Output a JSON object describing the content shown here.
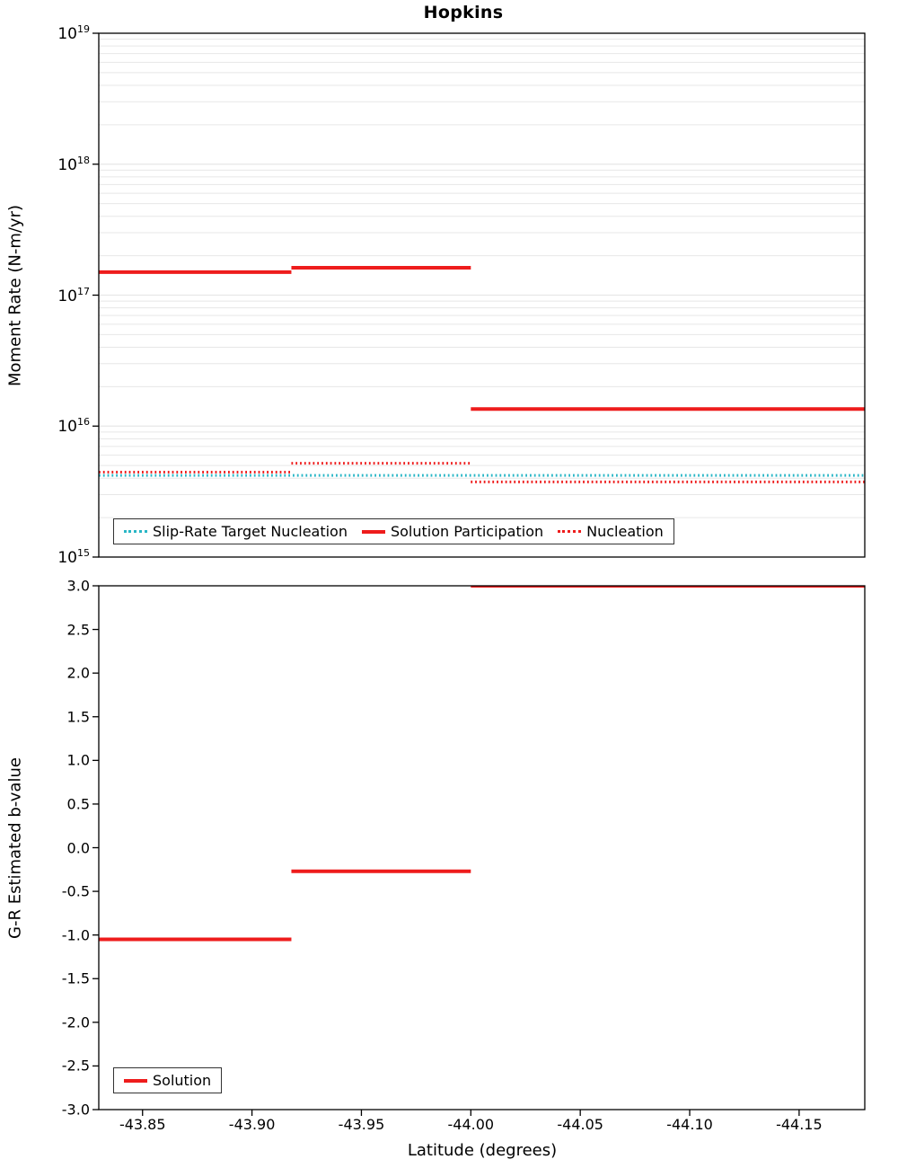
{
  "title": "Hopkins",
  "colors": {
    "red": "#ee1c1c",
    "cyan": "#29b6c6",
    "grid": "#e7e7e7",
    "axis": "#000000",
    "background": "#ffffff"
  },
  "x_axis": {
    "label": "Latitude (degrees)",
    "range": [
      -43.83,
      -44.18
    ],
    "ticks": [
      -43.85,
      -43.9,
      -43.95,
      -44.0,
      -44.05,
      -44.1,
      -44.15
    ],
    "tick_labels": [
      "-43.85",
      "-43.90",
      "-43.95",
      "-44.00",
      "-44.05",
      "-44.10",
      "-44.15"
    ]
  },
  "chart_data": [
    {
      "type": "line",
      "panel": "top",
      "ylabel": "Moment Rate (N-m/yr)",
      "yscale": "log",
      "ylim": [
        1000000000000000.0,
        1e+19
      ],
      "y_ticks": [
        1e+19,
        1e+18,
        1e+17,
        1e+16,
        1000000000000000.0
      ],
      "y_tick_label_base": "10",
      "y_tick_exponents": [
        "19",
        "18",
        "17",
        "16",
        "15"
      ],
      "grid": true,
      "legend_position": "bottom-left-horizontal",
      "series": [
        {
          "name": "Slip-Rate Target Nucleation",
          "color": "cyan",
          "style": "dotted",
          "width": 3,
          "segments": [
            {
              "x": [
                -43.83,
                -44.18
              ],
              "y": 4200000000000000.0
            }
          ]
        },
        {
          "name": "Solution Participation",
          "color": "red",
          "style": "solid",
          "width": 4,
          "segments": [
            {
              "x": [
                -43.83,
                -43.918
              ],
              "y": 1.5e+17
            },
            {
              "x": [
                -43.918,
                -44.0
              ],
              "y": 1.62e+17
            },
            {
              "x": [
                -44.0,
                -44.18
              ],
              "y": 1.35e+16
            }
          ]
        },
        {
          "name": "Nucleation",
          "color": "red",
          "style": "dotted",
          "width": 3,
          "segments": [
            {
              "x": [
                -43.83,
                -43.918
              ],
              "y": 4450000000000000.0
            },
            {
              "x": [
                -43.918,
                -44.0
              ],
              "y": 5200000000000000.0
            },
            {
              "x": [
                -44.0,
                -44.18
              ],
              "y": 3750000000000000.0
            }
          ]
        }
      ]
    },
    {
      "type": "line",
      "panel": "bottom",
      "ylabel": "G-R Estimated b-value",
      "yscale": "linear",
      "ylim": [
        -3.0,
        3.0
      ],
      "y_ticks": [
        3.0,
        2.5,
        2.0,
        1.5,
        1.0,
        0.5,
        0.0,
        -0.5,
        -1.0,
        -1.5,
        -2.0,
        -2.5,
        -3.0
      ],
      "y_tick_labels": [
        "3.0",
        "2.5",
        "2.0",
        "1.5",
        "1.0",
        "0.5",
        "0.0",
        "-0.5",
        "-1.0",
        "-1.5",
        "-2.0",
        "-2.5",
        "-3.0"
      ],
      "grid": false,
      "legend_position": "bottom-left",
      "series": [
        {
          "name": "Solution",
          "color": "red",
          "style": "solid",
          "width": 4,
          "segments": [
            {
              "x": [
                -43.83,
                -43.918
              ],
              "y": -1.05
            },
            {
              "x": [
                -43.918,
                -44.0
              ],
              "y": -0.27
            },
            {
              "x": [
                -44.0,
                -44.18
              ],
              "y": 3.0
            }
          ]
        }
      ]
    }
  ]
}
